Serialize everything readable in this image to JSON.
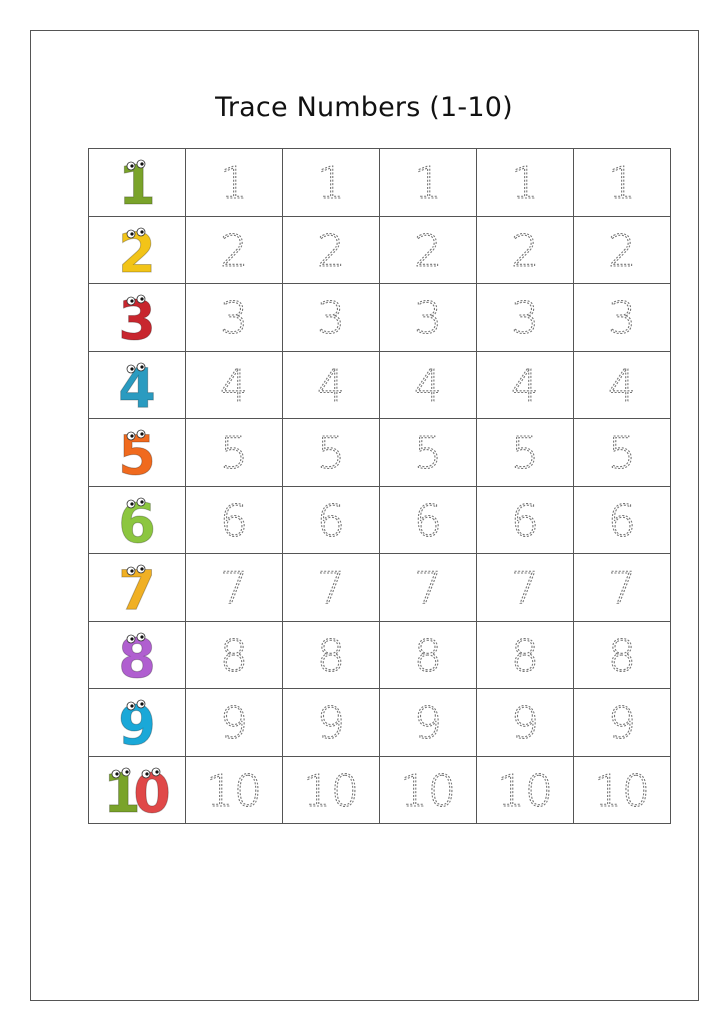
{
  "title": "Trace Numbers (1-10)",
  "rows": [
    {
      "number": "1",
      "color": "#7aa32a",
      "traces": [
        "1",
        "1",
        "1",
        "1",
        "1"
      ]
    },
    {
      "number": "2",
      "color": "#f2c418",
      "traces": [
        "2",
        "2",
        "2",
        "2",
        "2"
      ]
    },
    {
      "number": "3",
      "color": "#c8262e",
      "traces": [
        "3",
        "3",
        "3",
        "3",
        "3"
      ]
    },
    {
      "number": "4",
      "color": "#2a9bc0",
      "traces": [
        "4",
        "4",
        "4",
        "4",
        "4"
      ]
    },
    {
      "number": "5",
      "color": "#f06a1e",
      "traces": [
        "5",
        "5",
        "5",
        "5",
        "5"
      ]
    },
    {
      "number": "6",
      "color": "#8cc63f",
      "traces": [
        "6",
        "6",
        "6",
        "6",
        "6"
      ]
    },
    {
      "number": "7",
      "color": "#f0b024",
      "traces": [
        "7",
        "7",
        "7",
        "7",
        "7"
      ]
    },
    {
      "number": "8",
      "color": "#b05fd0",
      "traces": [
        "8",
        "8",
        "8",
        "8",
        "8"
      ]
    },
    {
      "number": "9",
      "color": "#1aa8d8",
      "traces": [
        "9",
        "9",
        "9",
        "9",
        "9"
      ]
    },
    {
      "number": "10",
      "color": "#7aa32a",
      "color2": "#e04848",
      "traces": [
        "10",
        "10",
        "10",
        "10",
        "10"
      ]
    }
  ],
  "trace_color": "#777777",
  "icons": {
    "monster_number": "cartoon-monster-digit"
  }
}
